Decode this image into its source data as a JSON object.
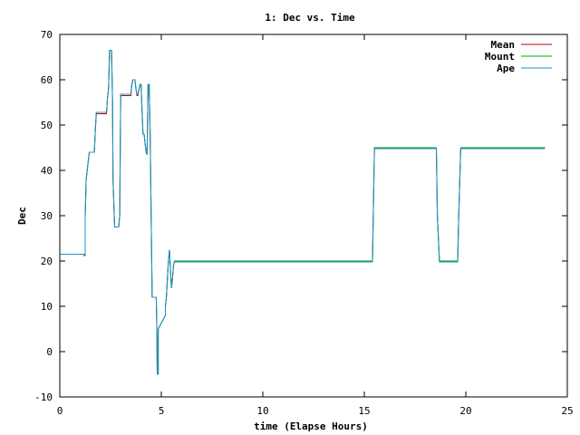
{
  "chart_data": {
    "type": "line",
    "title": "1: Dec vs. Time",
    "xlabel": "time (Elapse Hours)",
    "ylabel": "Dec",
    "xlim": [
      0,
      25
    ],
    "ylim": [
      -10,
      70
    ],
    "xticks": [
      0,
      5,
      10,
      15,
      20,
      25
    ],
    "yticks": [
      -10,
      0,
      10,
      20,
      30,
      40,
      50,
      60,
      70
    ],
    "grid": false,
    "legend_position": "top-right",
    "series": [
      {
        "name": "Mean",
        "color": "#cc0000",
        "x": [
          0,
          1.2,
          1.2,
          1.25,
          1.25,
          1.3,
          1.45,
          1.45,
          1.6,
          1.7,
          1.75,
          1.8,
          1.8,
          2.05,
          2.05,
          2.3,
          2.35,
          2.4,
          2.45,
          2.45,
          2.55,
          2.6,
          2.62,
          2.7,
          2.7,
          2.9,
          2.95,
          3.0,
          3.0,
          3.5,
          3.55,
          3.6,
          3.7,
          3.75,
          3.8,
          3.85,
          3.9,
          3.95,
          4.0,
          4.1,
          4.15,
          4.2,
          4.25,
          4.3,
          4.35,
          4.4,
          4.45,
          4.5,
          4.55,
          4.6,
          4.62,
          4.65,
          4.7,
          4.75,
          4.78,
          4.8,
          4.85,
          4.85,
          5.2,
          5.2,
          5.25,
          5.3,
          5.35,
          5.4,
          5.45,
          5.5,
          5.55,
          5.6,
          5.65,
          5.7,
          5.75,
          5.8,
          5.85,
          5.9,
          10.25,
          10.25,
          13.45,
          13.45,
          15.3,
          15.4,
          15.5,
          18.55,
          18.6,
          18.7,
          19.6,
          19.65,
          19.75,
          23.9
        ],
        "y": [
          21.5,
          21.5,
          21.2,
          21.2,
          30,
          38,
          44,
          44,
          44,
          44,
          49,
          52.5,
          52.5,
          52.5,
          52.5,
          52.5,
          56,
          58,
          66.5,
          66.5,
          66.5,
          55,
          38,
          27.5,
          27.5,
          27.5,
          30,
          56.5,
          56.5,
          56.5,
          59,
          60,
          60,
          58,
          56.5,
          56.5,
          58,
          59,
          59,
          48,
          48,
          46,
          44,
          43.5,
          59,
          59,
          48,
          30,
          12,
          12,
          12,
          12,
          12,
          12,
          5,
          -5,
          -5,
          5,
          8,
          10,
          12,
          16,
          20,
          22.5,
          18,
          14,
          16,
          19,
          20,
          20,
          20,
          20,
          20,
          20,
          20,
          20,
          20,
          20,
          20,
          20,
          45,
          45,
          30,
          20,
          20,
          30,
          45,
          45
        ]
      },
      {
        "name": "Mount",
        "color": "#00aa00",
        "x": [
          0,
          1.2,
          1.2,
          1.25,
          1.25,
          1.3,
          1.45,
          1.45,
          1.6,
          1.7,
          1.75,
          1.8,
          1.8,
          2.05,
          2.05,
          2.3,
          2.35,
          2.4,
          2.45,
          2.45,
          2.55,
          2.6,
          2.62,
          2.7,
          2.7,
          2.9,
          2.95,
          3.0,
          3.0,
          3.5,
          3.55,
          3.6,
          3.7,
          3.75,
          3.8,
          3.85,
          3.9,
          3.95,
          4.0,
          4.1,
          4.15,
          4.2,
          4.25,
          4.3,
          4.35,
          4.4,
          4.45,
          4.5,
          4.55,
          4.6,
          4.62,
          4.65,
          4.7,
          4.75,
          4.78,
          4.8,
          4.85,
          4.85,
          5.2,
          5.2,
          5.25,
          5.3,
          5.35,
          5.4,
          5.45,
          5.5,
          5.55,
          5.6,
          5.65,
          5.7,
          5.75,
          5.8,
          5.85,
          5.9,
          10.25,
          10.25,
          13.45,
          13.45,
          15.3,
          15.4,
          15.5,
          18.55,
          18.6,
          18.7,
          19.6,
          19.65,
          19.75,
          23.9
        ],
        "y": [
          21.5,
          21.5,
          21.4,
          21.4,
          30,
          38,
          44,
          44,
          44,
          44,
          49,
          52.8,
          52.8,
          52.8,
          52.8,
          52.8,
          56,
          58,
          66.5,
          66.5,
          66.5,
          55,
          38,
          27.5,
          27.5,
          27.5,
          30,
          56.8,
          56.8,
          56.8,
          59,
          60,
          60,
          58,
          56.8,
          56.8,
          58,
          59,
          59,
          48,
          48,
          46,
          44,
          43.5,
          59,
          59,
          48,
          30,
          12,
          12,
          12,
          12,
          12,
          12,
          5,
          -5,
          -5,
          5,
          8,
          10,
          12,
          16,
          20,
          22.5,
          18,
          14,
          16,
          19,
          20,
          20,
          20,
          20,
          20,
          20,
          20,
          20,
          20,
          20,
          20,
          20,
          45,
          45,
          30,
          20,
          20,
          30,
          45,
          45
        ]
      },
      {
        "name": "Ape",
        "color": "#1f8fcf",
        "x": [
          0,
          1.2,
          1.2,
          1.25,
          1.25,
          1.3,
          1.45,
          1.45,
          1.6,
          1.7,
          1.75,
          1.8,
          1.8,
          2.05,
          2.05,
          2.3,
          2.35,
          2.4,
          2.45,
          2.45,
          2.55,
          2.6,
          2.62,
          2.7,
          2.7,
          2.9,
          2.95,
          3.0,
          3.0,
          3.5,
          3.55,
          3.6,
          3.7,
          3.75,
          3.8,
          3.85,
          3.9,
          3.95,
          4.0,
          4.1,
          4.15,
          4.2,
          4.25,
          4.3,
          4.35,
          4.4,
          4.45,
          4.5,
          4.55,
          4.6,
          4.62,
          4.65,
          4.7,
          4.75,
          4.78,
          4.8,
          4.85,
          4.85,
          5.2,
          5.2,
          5.25,
          5.3,
          5.35,
          5.4,
          5.45,
          5.5,
          5.55,
          5.6,
          5.65,
          5.7,
          5.75,
          5.8,
          5.85,
          5.9,
          10.25,
          10.25,
          13.45,
          13.45,
          15.3,
          15.4,
          15.5,
          18.55,
          18.6,
          18.7,
          19.6,
          19.65,
          19.75,
          23.9
        ],
        "y": [
          21.5,
          21.5,
          21.5,
          21.5,
          30,
          38,
          44,
          44,
          44,
          44,
          49,
          52.8,
          52.8,
          52.8,
          52.8,
          52.8,
          56,
          58,
          66.5,
          66.5,
          66.5,
          55,
          38,
          27.5,
          27.5,
          27.5,
          30,
          56.8,
          56.8,
          56.8,
          59,
          60,
          60,
          58,
          56.8,
          56.8,
          58,
          59,
          59,
          48,
          48,
          46,
          44,
          43.5,
          59,
          59,
          48,
          30,
          12,
          12,
          12,
          12,
          12,
          12,
          5,
          -5,
          -5,
          5,
          8,
          10,
          12,
          16,
          20,
          22.5,
          18,
          14,
          16,
          19,
          19.8,
          19.8,
          19.8,
          19.8,
          19.8,
          19.8,
          19.8,
          19.8,
          19.8,
          19.8,
          19.8,
          19.8,
          44.8,
          44.8,
          30,
          19.8,
          19.8,
          30,
          44.8,
          44.8
        ]
      }
    ]
  }
}
